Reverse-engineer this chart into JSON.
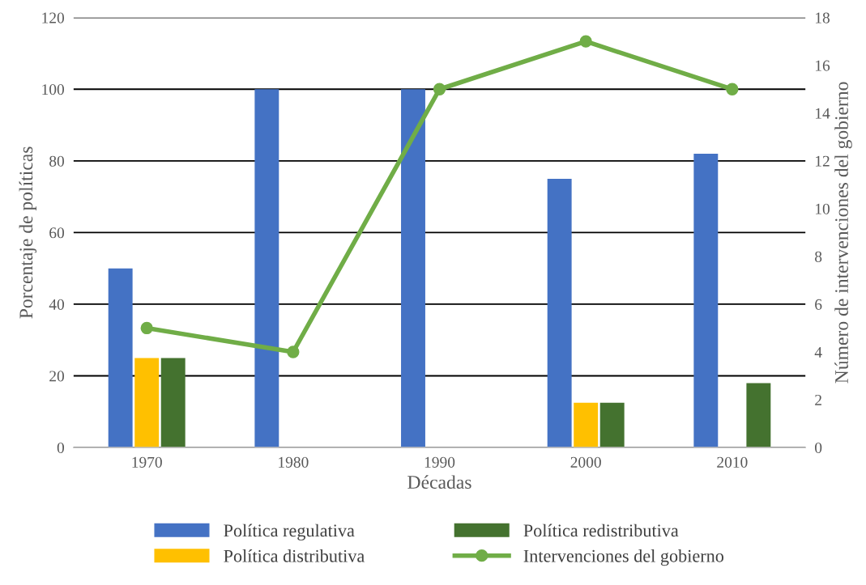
{
  "chart_data": {
    "type": "bar",
    "xlabel": "Décadas",
    "ylabel": "Porcentaje de políticas",
    "y2label": "Número de intervenciones del gobierno",
    "categories": [
      "1970",
      "1980",
      "1990",
      "2000",
      "2010"
    ],
    "series": [
      {
        "name": "Política regulativa",
        "color": "#4472c4",
        "values": [
          50,
          100,
          100,
          75,
          82
        ]
      },
      {
        "name": "Política distributiva",
        "color": "#ffc000",
        "values": [
          25,
          null,
          null,
          12.5,
          null
        ]
      },
      {
        "name": "Política redistributiva",
        "color": "#44722f",
        "values": [
          25,
          null,
          null,
          12.5,
          18
        ]
      },
      {
        "name": "Intervenciones del gobierno",
        "color": "#70ad47",
        "type": "line",
        "axis": "y2",
        "marker": "circle",
        "values": [
          5,
          4,
          15,
          17,
          15
        ]
      }
    ],
    "ylim": [
      0,
      120
    ],
    "yticks": [
      0,
      20,
      40,
      60,
      80,
      100,
      120
    ],
    "y2lim": [
      0,
      18
    ],
    "y2ticks": [
      0,
      2,
      4,
      6,
      8,
      10,
      12,
      14,
      16,
      18
    ],
    "grid": "y",
    "legend": "bottom"
  }
}
